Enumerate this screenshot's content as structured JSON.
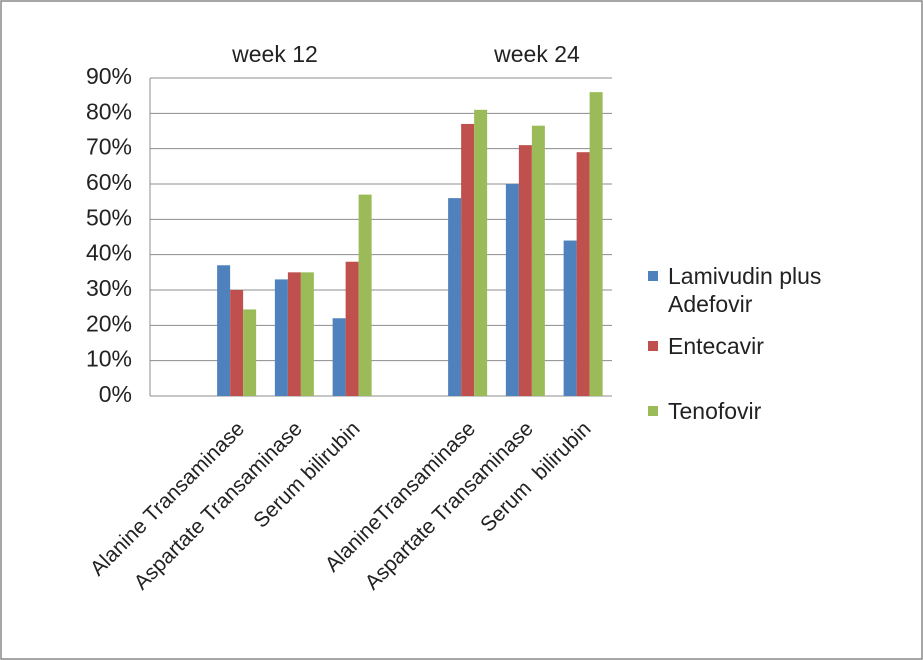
{
  "chart_data": {
    "type": "bar",
    "group_labels": [
      "week 12",
      "week 24"
    ],
    "categories": [
      null,
      "Alanine Transaminase",
      "Aspartate Transaminase",
      "Serum bilirubin",
      null,
      "AlanineTransaminase",
      "Aspartate Transaminase",
      "Serum  bilirubin"
    ],
    "series": [
      {
        "name": "Lamivudin plus Adefovir",
        "color": "#4f81bd",
        "values": [
          null,
          37,
          33,
          22,
          null,
          56,
          60,
          44
        ]
      },
      {
        "name": "Entecavir",
        "color": "#c0504d",
        "values": [
          null,
          30,
          35,
          38,
          null,
          77,
          71,
          69
        ]
      },
      {
        "name": "Tenofovir",
        "color": "#9bbb59",
        "values": [
          null,
          24.5,
          35,
          57,
          null,
          81,
          76.5,
          86
        ]
      }
    ],
    "ylim": [
      0,
      90
    ],
    "yticks": [
      {
        "value": 0,
        "label": "0%"
      },
      {
        "value": 10,
        "label": "10%"
      },
      {
        "value": 20,
        "label": "20%"
      },
      {
        "value": 30,
        "label": "30%"
      },
      {
        "value": 40,
        "label": "40%"
      },
      {
        "value": 50,
        "label": "50%"
      },
      {
        "value": 60,
        "label": "60%"
      },
      {
        "value": 70,
        "label": "70%"
      },
      {
        "value": 80,
        "label": "80%"
      },
      {
        "value": 90,
        "label": "90%"
      }
    ],
    "grid": true,
    "legend": "right"
  }
}
